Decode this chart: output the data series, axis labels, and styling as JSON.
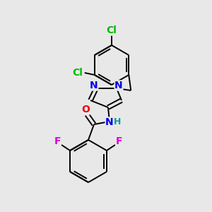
{
  "background_color": "#e8e8e8",
  "bond_color": "#000000",
  "atom_colors": {
    "Cl": "#00bb00",
    "N": "#0000ee",
    "O": "#ee0000",
    "F": "#dd00dd",
    "H": "#009999",
    "C": "#000000"
  },
  "font_size": 10,
  "lw": 1.4,
  "figsize": [
    3.0,
    3.0
  ],
  "dpi": 100
}
